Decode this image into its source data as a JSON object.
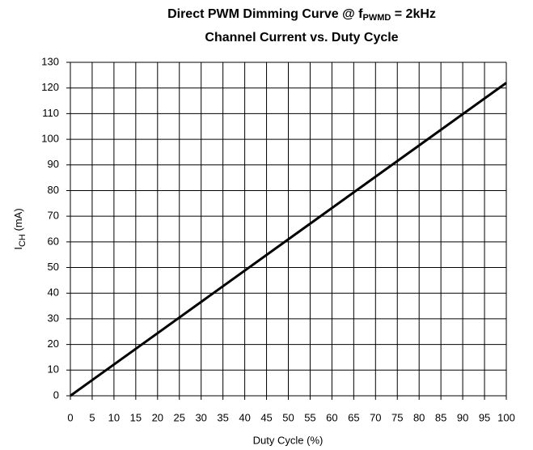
{
  "chart_data": {
    "type": "line",
    "title": {
      "text": "Direct PWM Dimming Curve @ f",
      "subscript": "PWMD",
      "suffix": " = 2kHz"
    },
    "subtitle": "Channel Current vs. Duty Cycle",
    "xlabel": "Duty Cycle (%)",
    "ylabel": {
      "text": "I",
      "subscript": "CH",
      "suffix": " (mA)"
    },
    "x": [
      0,
      100
    ],
    "series": [
      {
        "name": "Channel Current",
        "color": "#000000",
        "values": [
          0,
          122
        ]
      }
    ],
    "xlim": [
      0,
      100
    ],
    "xticks": [
      0,
      5,
      10,
      15,
      20,
      25,
      30,
      35,
      40,
      45,
      50,
      55,
      60,
      65,
      70,
      75,
      80,
      85,
      90,
      95,
      100
    ],
    "ylim": [
      0,
      130
    ],
    "yticks": [
      0,
      10,
      20,
      30,
      40,
      50,
      60,
      70,
      80,
      90,
      100,
      110,
      120,
      130
    ],
    "grid": true
  }
}
